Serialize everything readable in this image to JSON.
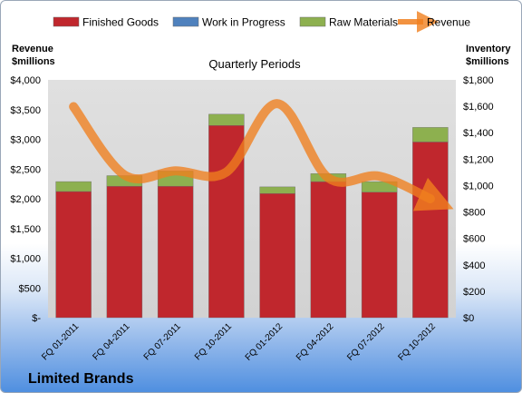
{
  "chart_data": {
    "type": "bar",
    "stacked": true,
    "title": "Limited Brands",
    "subtitle": "Quarterly Periods",
    "categories": [
      "FQ 01-2011",
      "FQ 04-2011",
      "FQ 07-2011",
      "FQ 10-2011",
      "FQ 01-2012",
      "FQ 04-2012",
      "FQ 07-2012",
      "FQ 10-2012"
    ],
    "series": [
      {
        "name": "Finished Goods",
        "axis": "right",
        "color": "#c0272d",
        "values": [
          955,
          995,
          995,
          1455,
          940,
          1030,
          950,
          1330
        ]
      },
      {
        "name": "Work in Progress",
        "axis": "right",
        "color": "#4f81bd",
        "values": [
          0,
          0,
          0,
          0,
          0,
          0,
          0,
          0
        ]
      },
      {
        "name": "Raw Materials",
        "axis": "right",
        "color": "#8db04f",
        "values": [
          75,
          80,
          115,
          85,
          50,
          60,
          80,
          110
        ]
      },
      {
        "name": "Revenue",
        "axis": "left",
        "type": "line",
        "color": "#f07f1e",
        "values": [
          3550,
          2400,
          2470,
          2450,
          3600,
          2350,
          2380,
          2000
        ]
      }
    ],
    "ylabel_left": "Revenue\n$millions",
    "ylabel_right": "Inventory\n$millions",
    "ylim_left": [
      0,
      4000
    ],
    "ylim_right": [
      0,
      1800
    ],
    "left_ticks": [
      "$-",
      "$500",
      "$1,000",
      "$1,500",
      "$2,000",
      "$2,500",
      "$3,000",
      "$3,500",
      "$4,000"
    ],
    "right_ticks": [
      "$0",
      "$200",
      "$400",
      "$600",
      "$800",
      "$1,000",
      "$1,200",
      "$1,400",
      "$1,600",
      "$1,800"
    ],
    "grid": false,
    "legend_position": "top"
  }
}
